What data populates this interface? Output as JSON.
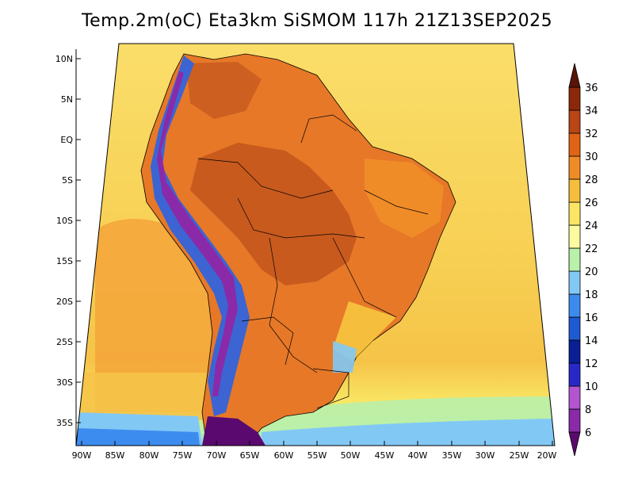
{
  "title": "Temp.2m(oC) Eta3km SiSMOM 117h 21Z13SEP2025",
  "axes": {
    "lat_labels": [
      "10N",
      "5N",
      "EQ",
      "5S",
      "10S",
      "15S",
      "20S",
      "25S",
      "30S",
      "35S"
    ],
    "lon_labels": [
      "90W",
      "85W",
      "80W",
      "75W",
      "70W",
      "65W",
      "60W",
      "55W",
      "50W",
      "45W",
      "40W",
      "35W",
      "30W",
      "25W",
      "20W"
    ]
  },
  "colorbar": {
    "levels": [
      "6",
      "8",
      "10",
      "12",
      "14",
      "16",
      "18",
      "20",
      "22",
      "24",
      "26",
      "28",
      "30",
      "32",
      "34",
      "36"
    ],
    "colors": [
      "#5a0a6e",
      "#8a2aa8",
      "#b455d0",
      "#2828c8",
      "#0a1e96",
      "#1e5ad2",
      "#3c8cf0",
      "#82c8f5",
      "#b9f0aa",
      "#fafaa0",
      "#fae664",
      "#f5be3c",
      "#f08c28",
      "#e16414",
      "#b94614",
      "#8c280a",
      "#5a1408"
    ]
  },
  "colors": {
    "ocean_north": "#fadc64",
    "ocean_warm": "#f5be3c",
    "land_hot": "#e67828",
    "land_very_hot": "#c85a1e",
    "andes_cold": "#3c64d2",
    "south_cold": "#82c8f5",
    "border": "#000000"
  }
}
